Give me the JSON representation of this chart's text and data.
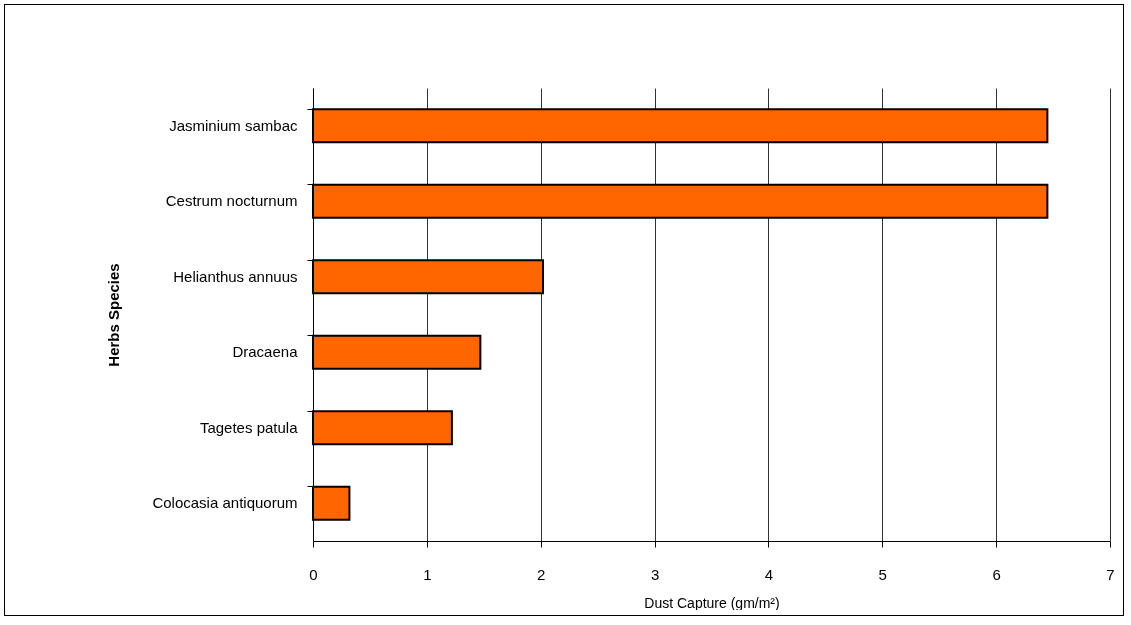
{
  "chart_data": {
    "type": "bar",
    "orientation": "horizontal",
    "categories": [
      "Jasminium sambac",
      "Cestrum nocturnum",
      "Helianthus annuus",
      "Dracaena",
      "Tagetes patula",
      "Colocasia antiquorum"
    ],
    "values": [
      6.45,
      6.45,
      2.02,
      1.47,
      1.22,
      0.32
    ],
    "color": "#ff6600",
    "xlim": [
      0,
      7
    ],
    "xticks": [
      0,
      1,
      2,
      3,
      4,
      5,
      6,
      7
    ],
    "grid": "x",
    "xlabel": "Dust Capture (gm/m²)",
    "ylabel": "Herbs Species"
  }
}
